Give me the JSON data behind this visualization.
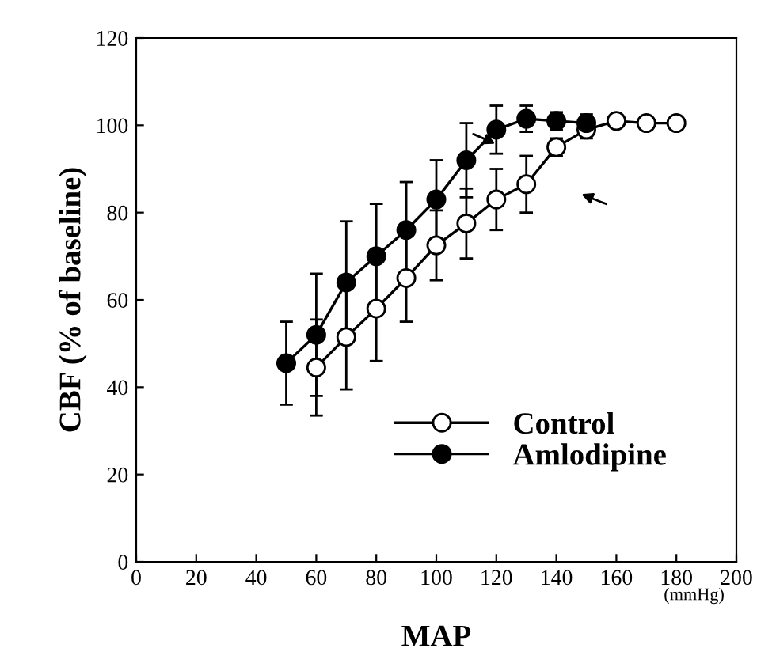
{
  "chart_data": {
    "type": "line",
    "xlabel": "MAP",
    "ylabel": "CBF (% of baseline)",
    "annotations": [
      "(mmHg)"
    ],
    "xlim": [
      0,
      200
    ],
    "xticks": [
      0,
      20,
      40,
      60,
      80,
      100,
      120,
      140,
      160,
      180,
      200
    ],
    "ylim": [
      0,
      120
    ],
    "yticks": [
      0,
      20,
      40,
      60,
      80,
      100,
      120
    ],
    "grid": false,
    "legend": "bottom right",
    "marker": "circle",
    "line_style": "solid",
    "series": [
      {
        "name": "Control",
        "color": "#ffffff",
        "x": [
          60,
          70,
          80,
          90,
          100,
          110,
          120,
          130,
          140,
          150,
          160,
          170,
          180
        ],
        "values": [
          44.5,
          51.5,
          58,
          65,
          72.5,
          77.5,
          83,
          86.5,
          95,
          99,
          101,
          100.5,
          100.5
        ],
        "errors": [
          11,
          12,
          12,
          10,
          8,
          8,
          7,
          6.5,
          2,
          2,
          null,
          null,
          null
        ]
      },
      {
        "name": "Amlodipine",
        "color": "#000000",
        "x": [
          50,
          60,
          70,
          80,
          90,
          100,
          110,
          120,
          130,
          140,
          150
        ],
        "values": [
          45.5,
          52,
          64,
          70,
          76,
          83,
          92,
          99,
          101.5,
          101,
          100.5
        ],
        "errors": [
          9.5,
          14,
          14,
          12,
          11,
          9,
          8.5,
          5.5,
          3,
          2,
          2
        ]
      }
    ]
  }
}
